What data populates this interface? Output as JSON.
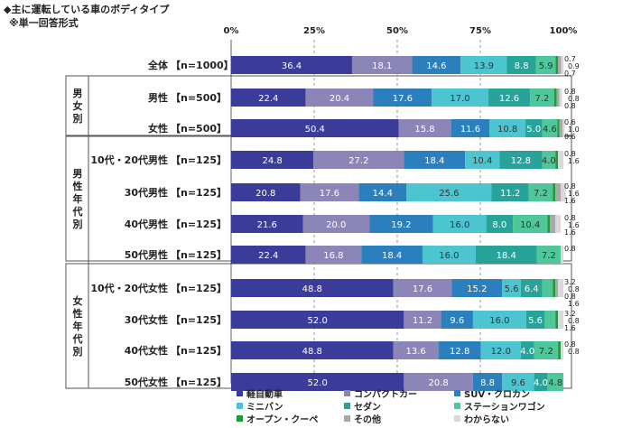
{
  "header": {
    "title": "◆主に運転している車のボディタイプ",
    "subtitle": "※単一回答形式"
  },
  "chart_data": {
    "type": "bar",
    "orientation": "horizontal-stacked-100",
    "title": "主に運転している車のボディタイプ",
    "xlim": [
      0,
      100
    ],
    "x_ticks": [
      "0%",
      "25%",
      "50%",
      "75%",
      "100%"
    ],
    "groups": [
      {
        "label": "",
        "rows": [
          0
        ]
      },
      {
        "label": "男女別",
        "rows": [
          1,
          2
        ]
      },
      {
        "label": "男性年代別",
        "rows": [
          3,
          4,
          5,
          6
        ]
      },
      {
        "label": "女性年代別",
        "rows": [
          7,
          8,
          9,
          10
        ]
      }
    ],
    "categories": [
      {
        "name": "全体",
        "n": "【n=1000】"
      },
      {
        "name": "男性",
        "n": "【n=500】"
      },
      {
        "name": "女性",
        "n": "【n=500】"
      },
      {
        "name": "10代・20代男性",
        "n": "【n=125】"
      },
      {
        "name": "30代男性",
        "n": "【n=125】"
      },
      {
        "name": "40代男性",
        "n": "【n=125】"
      },
      {
        "name": "50代男性",
        "n": "【n=125】"
      },
      {
        "name": "10代・20代女性",
        "n": "【n=125】"
      },
      {
        "name": "30代女性",
        "n": "【n=125】"
      },
      {
        "name": "40代女性",
        "n": "【n=125】"
      },
      {
        "name": "50代女性",
        "n": "【n=125】"
      }
    ],
    "series": [
      {
        "name": "軽自動車",
        "color": "#3b3b99",
        "label_color": "#ffffff",
        "values": [
          36.4,
          22.4,
          50.4,
          24.8,
          20.8,
          21.6,
          22.4,
          48.8,
          52.0,
          48.8,
          52.0
        ]
      },
      {
        "name": "コンパクトカー",
        "color": "#8b85b8",
        "label_color": "#ffffff",
        "values": [
          18.1,
          20.4,
          15.8,
          27.2,
          17.6,
          20.0,
          16.8,
          17.6,
          11.2,
          13.6,
          20.8
        ]
      },
      {
        "name": "SUV・クロカン",
        "color": "#2b7fbd",
        "label_color": "#ffffff",
        "values": [
          14.6,
          17.6,
          11.6,
          18.4,
          14.4,
          19.2,
          18.4,
          15.2,
          9.6,
          12.8,
          8.8
        ]
      },
      {
        "name": "ミニバン",
        "color": "#4cc5d1",
        "label_color": "#333333",
        "values": [
          13.9,
          17.0,
          10.8,
          10.4,
          25.6,
          16.0,
          16.0,
          5.6,
          16.0,
          12.0,
          9.6
        ]
      },
      {
        "name": "セダン",
        "color": "#27a39a",
        "label_color": "#ffffff",
        "values": [
          8.8,
          12.6,
          5.0,
          12.8,
          11.2,
          8.0,
          18.4,
          6.4,
          5.6,
          4.0,
          4.0
        ]
      },
      {
        "name": "ステーションワゴン",
        "color": "#4fc79a",
        "label_color": "#333333",
        "values": [
          5.9,
          7.2,
          4.6,
          4.0,
          7.2,
          10.4,
          7.2,
          3.2,
          3.2,
          7.2,
          4.8
        ]
      },
      {
        "name": "オープン・クーペ",
        "color": "#1f9a3c",
        "label_color": "#ffffff",
        "values": [
          0.7,
          0.8,
          0.6,
          0.8,
          0.8,
          0.8,
          0.0,
          0.8,
          0.8,
          0.8,
          0.0
        ]
      },
      {
        "name": "その他",
        "color": "#a8a8a8",
        "label_color": "#333333",
        "values": [
          0.9,
          0.8,
          1.0,
          0.0,
          1.6,
          1.6,
          0.0,
          0.8,
          0.0,
          0.0,
          0.0
        ]
      },
      {
        "name": "わからない",
        "color": "#d9d9d9",
        "label_color": "#333333",
        "values": [
          0.7,
          0.8,
          0.6,
          1.6,
          1.6,
          1.6,
          0.8,
          1.6,
          1.6,
          0.8,
          0.0
        ]
      }
    ],
    "legend": {
      "position": "bottom"
    }
  }
}
